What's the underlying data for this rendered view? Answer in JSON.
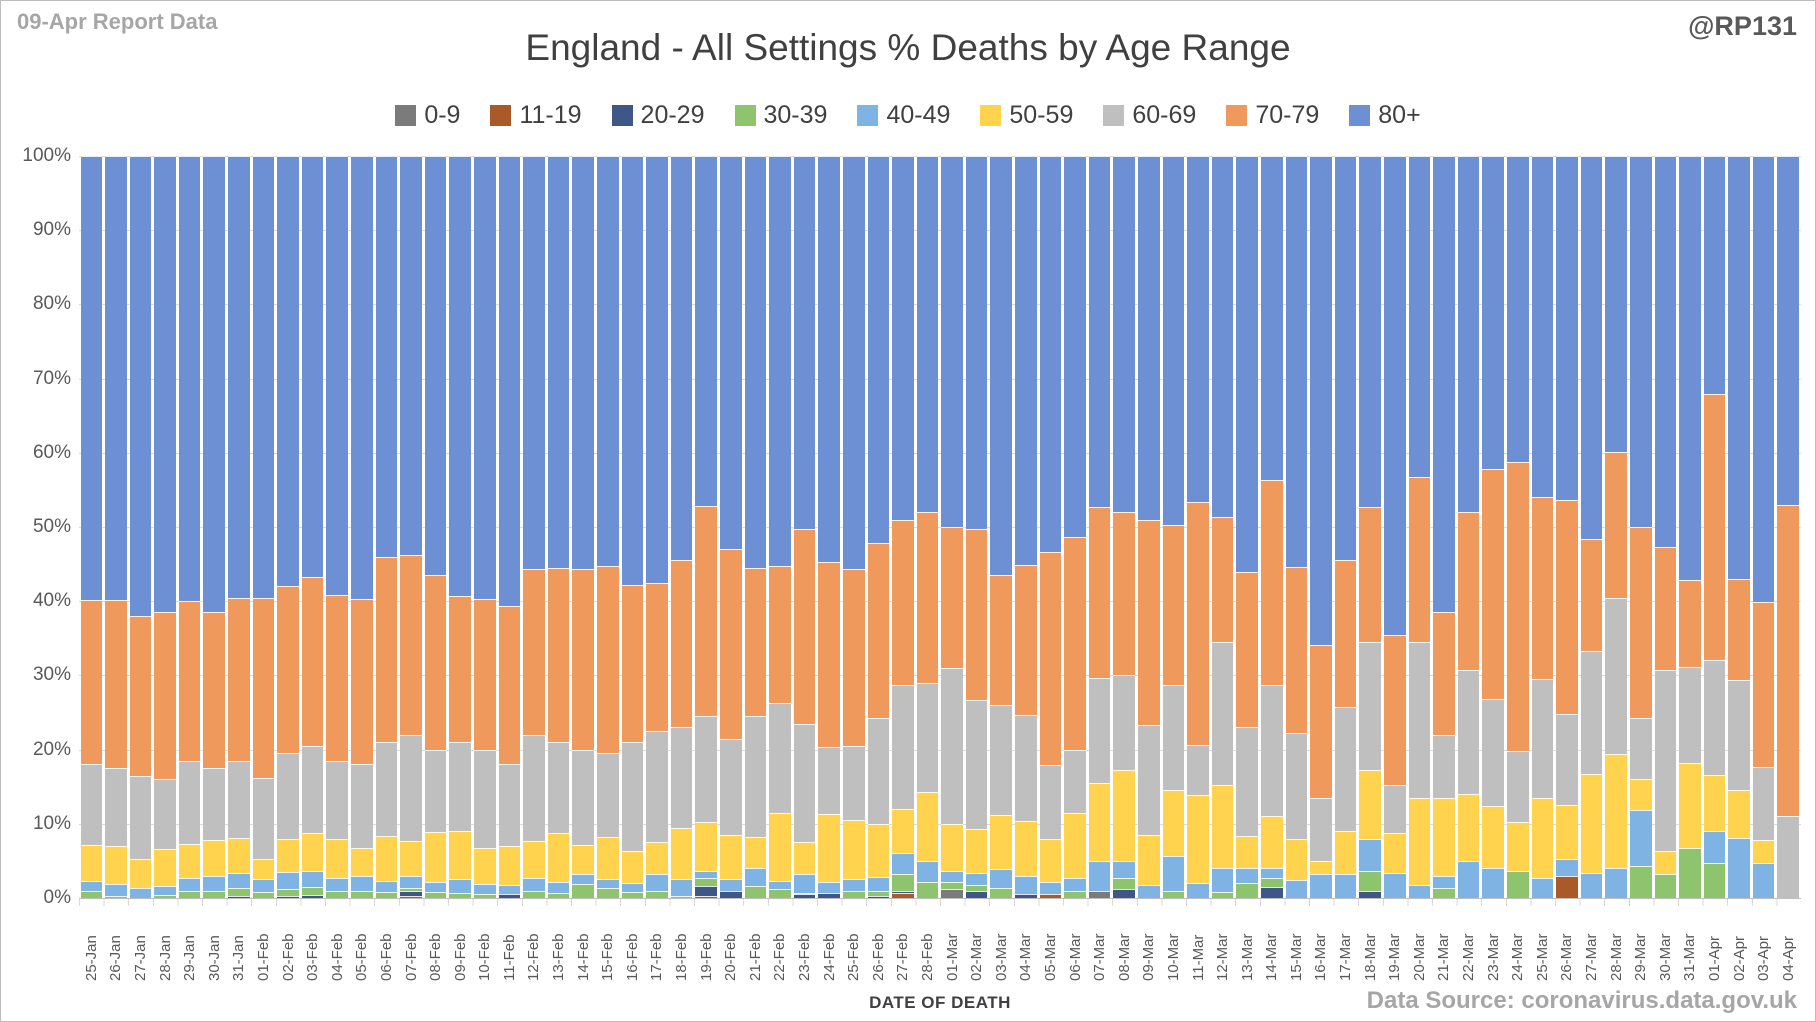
{
  "header": {
    "report_label": "09-Apr Report Data",
    "title": "England - All Settings % Deaths by Age Range",
    "handle": "@RP131"
  },
  "footer": {
    "x_axis_title": "DATE OF DEATH",
    "source": "Data Source: coronavirus.data.gov.uk"
  },
  "y_axis": {
    "ticks": [
      "100%",
      "90%",
      "80%",
      "70%",
      "60%",
      "50%",
      "40%",
      "30%",
      "20%",
      "10%",
      "0%"
    ]
  },
  "chart_data": {
    "type": "bar",
    "stacked": true,
    "percent": true,
    "title": "England - All Settings % Deaths by Age Range",
    "xlabel": "DATE OF DEATH",
    "ylabel": "",
    "ylim": [
      0,
      100
    ],
    "grid": true,
    "legend_position": "top",
    "series_names": [
      "0-9",
      "11-19",
      "20-29",
      "30-39",
      "40-49",
      "50-59",
      "60-69",
      "70-79",
      "80+"
    ],
    "series_colors": [
      "#7b7b7b",
      "#a85a28",
      "#3f5787",
      "#8ec46d",
      "#7fb3e4",
      "#ffd34d",
      "#bfbfbf",
      "#f0995c",
      "#6d8fd3"
    ],
    "categories": [
      "25-Jan",
      "26-Jan",
      "27-Jan",
      "28-Jan",
      "29-Jan",
      "30-Jan",
      "31-Jan",
      "01-Feb",
      "02-Feb",
      "03-Feb",
      "04-Feb",
      "05-Feb",
      "06-Feb",
      "07-Feb",
      "08-Feb",
      "09-Feb",
      "10-Feb",
      "11-Feb",
      "12-Feb",
      "13-Feb",
      "14-Feb",
      "15-Feb",
      "16-Feb",
      "17-Feb",
      "18-Feb",
      "19-Feb",
      "20-Feb",
      "21-Feb",
      "22-Feb",
      "23-Feb",
      "24-Feb",
      "25-Feb",
      "26-Feb",
      "27-Feb",
      "28-Feb",
      "01-Mar",
      "02-Mar",
      "03-Mar",
      "04-Mar",
      "05-Mar",
      "06-Mar",
      "07-Mar",
      "08-Mar",
      "09-Mar",
      "10-Mar",
      "11-Mar",
      "12-Mar",
      "13-Mar",
      "14-Mar",
      "15-Mar",
      "16-Mar",
      "17-Mar",
      "18-Mar",
      "19-Mar",
      "20-Mar",
      "21-Mar",
      "22-Mar",
      "23-Mar",
      "24-Mar",
      "25-Mar",
      "26-Mar",
      "27-Mar",
      "28-Mar",
      "29-Mar",
      "30-Mar",
      "31-Mar",
      "01-Apr",
      "02-Apr",
      "03-Apr",
      "04-Apr"
    ],
    "rows_note": "each row = one date, values in series order 0-9,11-19,20-29,30-39,40-49,50-59,60-69,70-79,80+ (percent of deaths)",
    "rows": [
      [
        0,
        0,
        0,
        1.0,
        1.3,
        4.9,
        10.8,
        22.2,
        59.8
      ],
      [
        0,
        0,
        0,
        0.3,
        1.6,
        5.1,
        10.5,
        22.7,
        59.8
      ],
      [
        0,
        0,
        0,
        0,
        1.4,
        3.9,
        11.2,
        21.5,
        62.0
      ],
      [
        0,
        0,
        0,
        0.4,
        1.2,
        5.0,
        9.4,
        22.5,
        61.5
      ],
      [
        0,
        0,
        0,
        1.0,
        1.7,
        4.6,
        11.2,
        21.5,
        60.0
      ],
      [
        0,
        0,
        0,
        1.0,
        2.0,
        4.8,
        9.7,
        21.0,
        61.5
      ],
      [
        0,
        0,
        0.3,
        1.0,
        2.1,
        4.7,
        10.4,
        22.0,
        59.5
      ],
      [
        0,
        0,
        0,
        0.8,
        1.7,
        2.7,
        11.0,
        24.3,
        59.5
      ],
      [
        0,
        0,
        0.3,
        0.9,
        2.3,
        4.4,
        11.6,
        22.5,
        58.0
      ],
      [
        0,
        0,
        0.4,
        1.1,
        2.1,
        5.2,
        11.7,
        22.8,
        56.7
      ],
      [
        0,
        0,
        0,
        0.9,
        1.8,
        5.2,
        10.6,
        22.3,
        59.2
      ],
      [
        0,
        0,
        0,
        0.9,
        2.1,
        3.8,
        11.2,
        22.3,
        59.7
      ],
      [
        0,
        0,
        0,
        0.8,
        1.5,
        6.1,
        12.6,
        25.0,
        54.0
      ],
      [
        0,
        0.3,
        0.6,
        0.4,
        1.7,
        4.7,
        14.3,
        24.2,
        53.8
      ],
      [
        0,
        0,
        0,
        0.8,
        1.4,
        6.7,
        11.1,
        23.5,
        56.5
      ],
      [
        0,
        0,
        0,
        0.7,
        1.8,
        6.6,
        11.9,
        19.7,
        59.3
      ],
      [
        0,
        0,
        0,
        0.6,
        1.3,
        4.9,
        13.2,
        20.3,
        59.7
      ],
      [
        0,
        0,
        0.5,
        0,
        1.3,
        5.2,
        11.0,
        21.3,
        60.7
      ],
      [
        0,
        0,
        0,
        1.0,
        1.7,
        5.0,
        14.3,
        22.3,
        55.7
      ],
      [
        0,
        0,
        0,
        0.7,
        1.4,
        6.6,
        12.3,
        23.5,
        55.5
      ],
      [
        0,
        0,
        0,
        1.9,
        1.3,
        4.0,
        12.8,
        24.3,
        55.7
      ],
      [
        0,
        0,
        0,
        1.4,
        1.1,
        5.7,
        11.3,
        25.3,
        55.2
      ],
      [
        0,
        0,
        0,
        0.8,
        1.2,
        4.3,
        14.7,
        21.2,
        57.8
      ],
      [
        0,
        0,
        0,
        1.0,
        2.2,
        4.3,
        15.0,
        20.0,
        57.5
      ],
      [
        0,
        0,
        0,
        0.3,
        2.2,
        7.0,
        13.5,
        22.5,
        54.5
      ],
      [
        0,
        0.3,
        1.3,
        1.1,
        1.0,
        6.5,
        14.3,
        28.3,
        47.2
      ],
      [
        0,
        0,
        0.9,
        0,
        1.6,
        6.0,
        13.0,
        25.5,
        53.0
      ],
      [
        0,
        0,
        0,
        1.6,
        2.5,
        4.1,
        16.3,
        20.0,
        55.5
      ],
      [
        0,
        0,
        0,
        1.2,
        1.1,
        9.1,
        14.9,
        18.5,
        55.2
      ],
      [
        0,
        0,
        0.5,
        0.2,
        2.5,
        4.3,
        16.0,
        26.2,
        50.3
      ],
      [
        0,
        0,
        0.7,
        0,
        1.4,
        9.2,
        9.0,
        25.0,
        54.7
      ],
      [
        0,
        0,
        0,
        0.9,
        1.6,
        8.0,
        10.0,
        23.8,
        55.7
      ],
      [
        0,
        0,
        0.3,
        0.7,
        1.8,
        7.2,
        14.3,
        23.5,
        52.2
      ],
      [
        0,
        0.7,
        0.3,
        2.2,
        2.9,
        5.9,
        16.7,
        22.3,
        49.0
      ],
      [
        0,
        0,
        0,
        2.1,
        2.9,
        9.3,
        14.7,
        23.0,
        48.0
      ],
      [
        1.2,
        0,
        0,
        0.9,
        1.5,
        6.4,
        21.0,
        19.0,
        50.0
      ],
      [
        0,
        0,
        1.0,
        0.8,
        1.6,
        5.9,
        17.4,
        23.0,
        50.3
      ],
      [
        0,
        0,
        0,
        1.4,
        2.5,
        7.3,
        14.8,
        17.6,
        56.4
      ],
      [
        0,
        0,
        0.5,
        0,
        2.5,
        7.4,
        14.3,
        20.2,
        55.1
      ],
      [
        0,
        0.6,
        0,
        0,
        1.5,
        5.9,
        9.9,
        28.7,
        53.4
      ],
      [
        0,
        0,
        0,
        0.9,
        1.8,
        8.8,
        8.4,
        28.7,
        51.4
      ],
      [
        0.9,
        0,
        0,
        0,
        4.1,
        10.5,
        14.2,
        23.0,
        47.3
      ],
      [
        0,
        0,
        1.2,
        1.5,
        2.3,
        12.2,
        12.9,
        21.9,
        48.0
      ],
      [
        0,
        0,
        0,
        0,
        1.8,
        6.7,
        14.8,
        27.7,
        49.0
      ],
      [
        0,
        0,
        0,
        0.9,
        4.8,
        8.8,
        14.2,
        21.6,
        49.7
      ],
      [
        0,
        0,
        0,
        0,
        2.0,
        11.9,
        6.7,
        32.8,
        46.6
      ],
      [
        0,
        0,
        0,
        0.8,
        3.3,
        11.1,
        19.3,
        16.9,
        48.6
      ],
      [
        0,
        0,
        0,
        2.0,
        2.0,
        4.4,
        14.6,
        21.0,
        56.0
      ],
      [
        0,
        0,
        1.5,
        1.2,
        1.3,
        7.0,
        17.7,
        27.7,
        43.6
      ],
      [
        0,
        0,
        0,
        0,
        2.4,
        5.5,
        14.4,
        22.3,
        55.4
      ],
      [
        0,
        0,
        0,
        0,
        3.2,
        1.8,
        8.5,
        20.6,
        65.9
      ],
      [
        0,
        0,
        0,
        0,
        3.2,
        5.8,
        16.7,
        19.9,
        54.4
      ],
      [
        0,
        0,
        1.0,
        2.7,
        4.3,
        9.2,
        17.3,
        18.2,
        47.3
      ],
      [
        0,
        0,
        0,
        0,
        3.4,
        5.4,
        6.4,
        20.3,
        64.5
      ],
      [
        0,
        0,
        0,
        0,
        1.8,
        11.7,
        21.0,
        22.3,
        43.2
      ],
      [
        0,
        0,
        0,
        1.4,
        1.6,
        10.5,
        8.5,
        16.5,
        61.5
      ],
      [
        0,
        0,
        0,
        0,
        5.0,
        9.0,
        16.7,
        21.3,
        48.0
      ],
      [
        0,
        0,
        0,
        0,
        4.1,
        8.3,
        14.4,
        31.0,
        42.2
      ],
      [
        0,
        0,
        0,
        3.6,
        0,
        6.6,
        9.6,
        39.0,
        41.2
      ],
      [
        0,
        0,
        0,
        0,
        2.7,
        10.8,
        16.0,
        24.6,
        45.9
      ],
      [
        0,
        3.0,
        0,
        0,
        2.2,
        7.4,
        12.2,
        28.9,
        46.3
      ],
      [
        0,
        0,
        0,
        0,
        3.4,
        13.3,
        16.6,
        15.1,
        51.6
      ],
      [
        0,
        0,
        0,
        0,
        4.1,
        15.3,
        21.1,
        19.6,
        39.9
      ],
      [
        0,
        0,
        0,
        4.3,
        7.6,
        4.1,
        8.3,
        25.7,
        50.0
      ],
      [
        0,
        0,
        0,
        3.2,
        0,
        3.1,
        24.4,
        16.6,
        52.7
      ],
      [
        0,
        0,
        0,
        6.8,
        0,
        11.4,
        12.9,
        11.8,
        57.1
      ],
      [
        0,
        0,
        0,
        4.7,
        4.4,
        7.5,
        15.5,
        35.8,
        32.1
      ],
      [
        0,
        0,
        0,
        0,
        8.1,
        6.4,
        14.9,
        13.6,
        57.0
      ],
      [
        0,
        0,
        0,
        0,
        4.7,
        3.1,
        9.8,
        22.3,
        60.1
      ],
      [
        0,
        0,
        0,
        0,
        0,
        0,
        11.1,
        41.9,
        47.0
      ]
    ]
  }
}
